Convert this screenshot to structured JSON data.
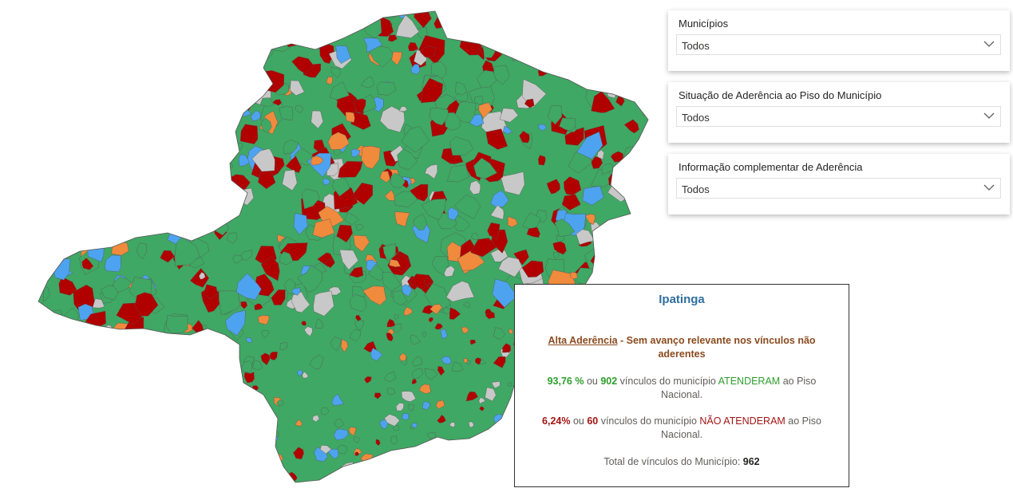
{
  "colors": {
    "green": "#3fa864",
    "red": "#b00000",
    "orange": "#f08a3c",
    "blue": "#4da3f0",
    "gray": "#c8c8c8",
    "border": "#555555"
  },
  "filters": [
    {
      "label": "Municípios",
      "value": "Todos"
    },
    {
      "label": "Situação de Aderência ao Piso do Município",
      "value": "Todos"
    },
    {
      "label": "Informação complementar de Aderência",
      "value": "Todos"
    }
  ],
  "tooltip": {
    "municipality": "Ipatinga",
    "level": "Alta Aderência",
    "level_sep": " - ",
    "level_detail": "Sem avanço relevante nos vínculos não aderentes",
    "met_percent": "93,76 %",
    "met_or": " ou ",
    "met_count": "902",
    "met_text1": " vínculos do município ",
    "met_status": "ATENDERAM",
    "met_text2": " ao Piso Nacional.",
    "unmet_percent": "6,24%",
    "unmet_or": " ou ",
    "unmet_count": "60",
    "unmet_text1": " vínculos do município ",
    "unmet_status": "NÃO ATENDERAM",
    "unmet_text2": " ao Piso Nacional.",
    "total_label": "Total de vínculos do Município: ",
    "total_value": "962"
  }
}
